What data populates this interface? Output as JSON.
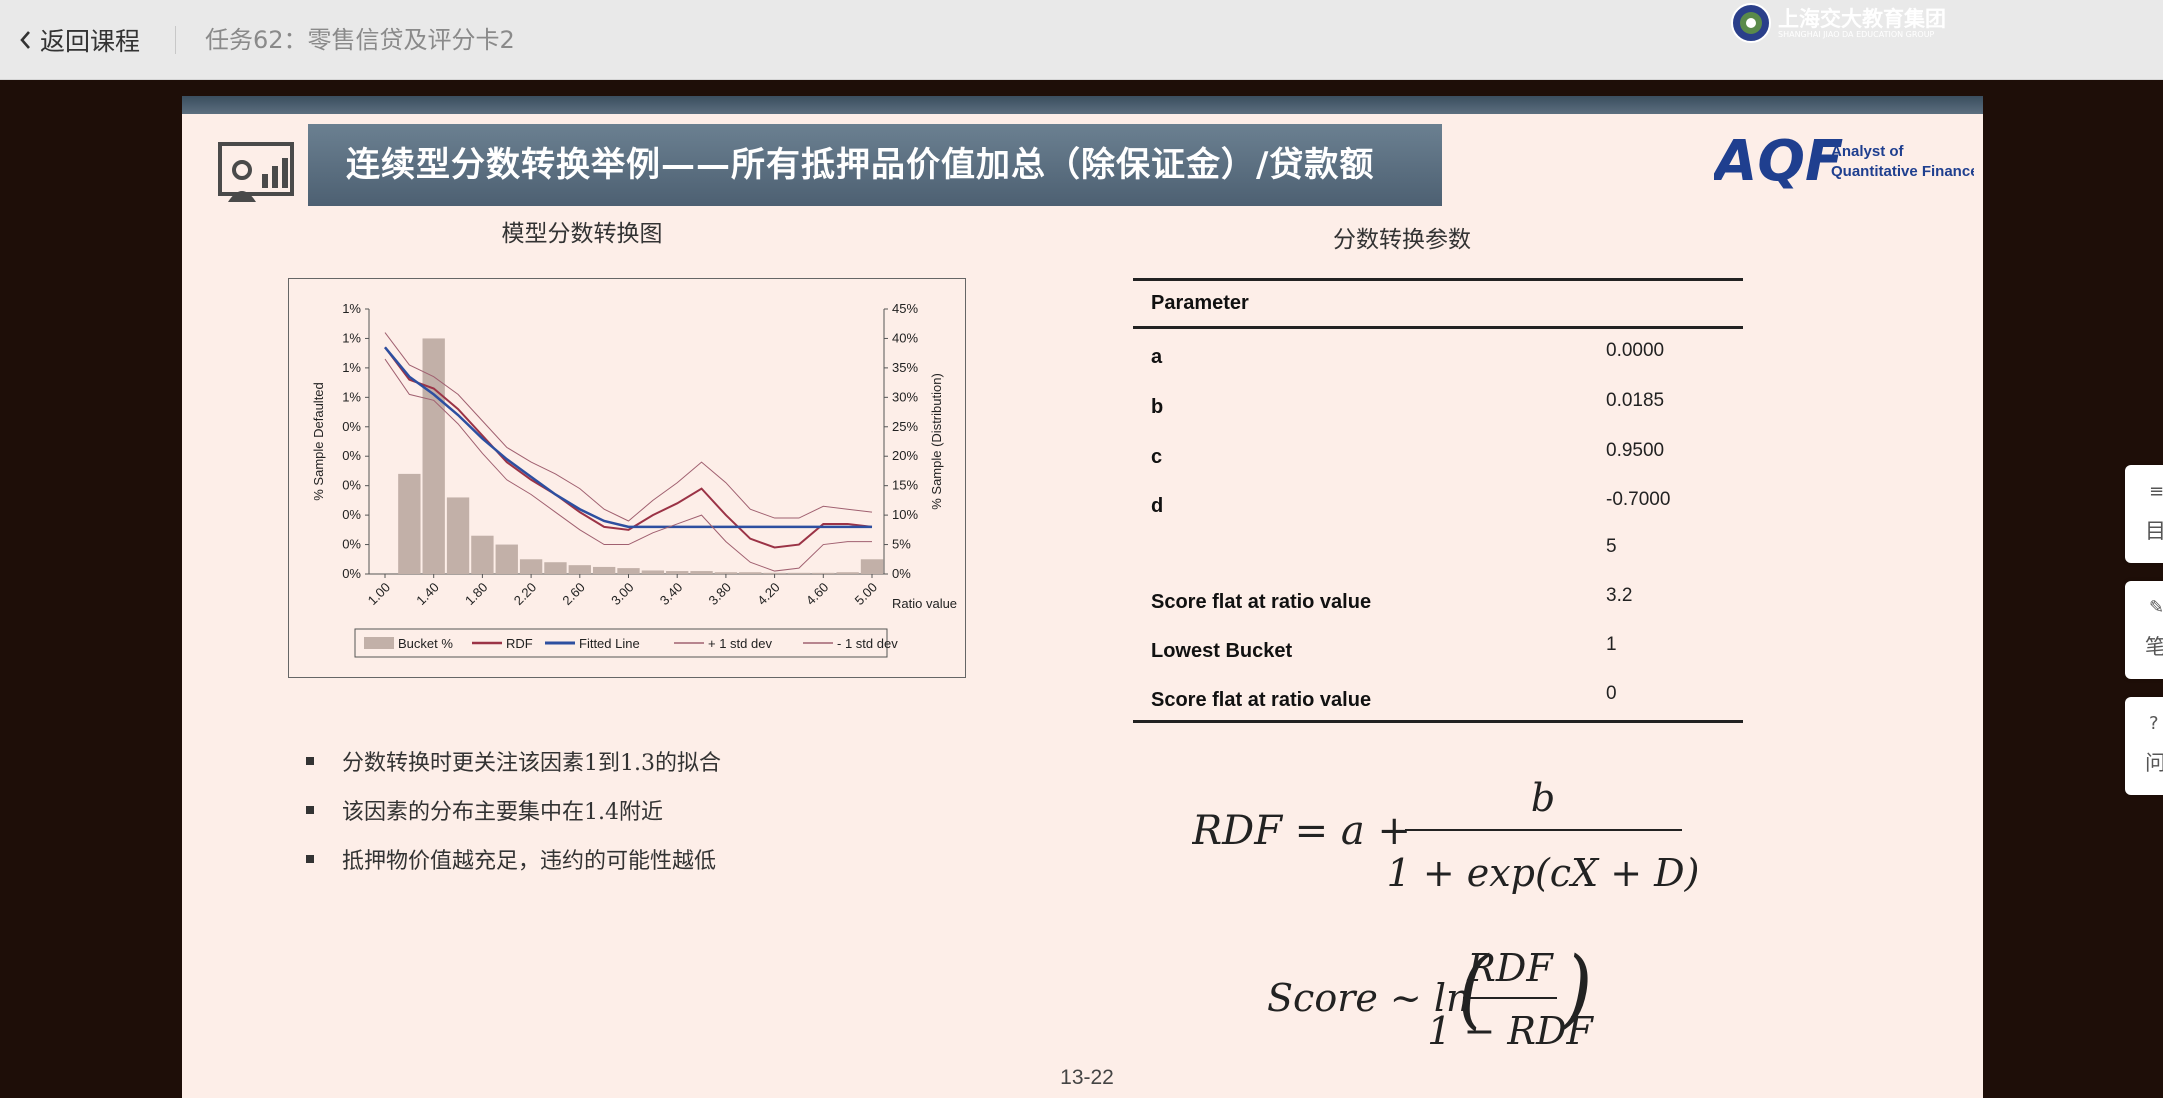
{
  "topbar": {
    "back_label": "返回课程",
    "task_title": "任务62：零售信贷及评分卡2"
  },
  "slide": {
    "title": "连续型分数转换举例——所有抵押品价值加总（除保证金）/贷款额",
    "logo_aqf": {
      "mark": "AQF",
      "line1": "Analyst of",
      "line2": "Quantitative Finance"
    },
    "logo_sjtu": {
      "name": "上海交大教育集团",
      "sub": "SHANGHAI JIAO DA EDUCATION GROUP"
    },
    "chart_title": "模型分数转换图",
    "table_title": "分数转换参数",
    "bullets": [
      "分数转换时更关注该因素1到1.3的拟合",
      "该因素的分布主要集中在1.4附近",
      "抵押物价值越充足，违约的可能性越低"
    ],
    "param_table": {
      "header": "Parameter",
      "rows": [
        {
          "name": "a",
          "value": "0.0000"
        },
        {
          "name": "b",
          "value": "0.0185"
        },
        {
          "name": "c",
          "value": "0.9500"
        },
        {
          "name": "d",
          "value": "-0.7000"
        },
        {
          "name": "",
          "value": "5"
        },
        {
          "name": "Score flat at ratio value",
          "value": "3.2"
        },
        {
          "name": "Lowest Bucket",
          "value": "1"
        },
        {
          "name": "Score flat at ratio value",
          "value": "0"
        }
      ]
    },
    "formula1": {
      "lhs": "RDF = a +",
      "numerator": "b",
      "denominator": "1 + exp(cX + D)"
    },
    "formula2": {
      "lhs": "Score ~ ln",
      "numerator": "RDF",
      "denominator": "1 − RDF"
    },
    "page_number": "13-22"
  },
  "side_tabs": [
    {
      "glyph": "≡",
      "label": "目"
    },
    {
      "glyph": "✎",
      "label": "笔"
    },
    {
      "glyph": "?",
      "label": "问"
    }
  ],
  "colors": {
    "bars": "#c2b0a8",
    "rdf": "#9b3346",
    "fitted": "#2d4fa0",
    "std": "#a06070",
    "banner": "#5a6d7e"
  },
  "chart_data": {
    "type": "bar",
    "title": "",
    "xlabel": "Ratio value",
    "ylabel_left": "% Sample Defaulted",
    "ylabel_right": "% Sample (Distribution)",
    "x_ticks": [
      "1.00",
      "1.40",
      "1.80",
      "2.20",
      "2.60",
      "3.00",
      "3.40",
      "3.80",
      "4.20",
      "4.60",
      "5.00"
    ],
    "y_left_ticks": [
      "0%",
      "0%",
      "0%",
      "0%",
      "0%",
      "0%",
      "1%",
      "1%",
      "1%",
      "1%"
    ],
    "y_right_ticks": [
      "0%",
      "5%",
      "10%",
      "15%",
      "20%",
      "25%",
      "30%",
      "35%",
      "40%",
      "45%"
    ],
    "right_ylim": [
      0,
      45
    ],
    "legend": [
      "Bucket %",
      "RDF",
      "Fitted Line",
      "+ 1 std dev",
      "- 1 std dev"
    ],
    "x": [
      1.0,
      1.2,
      1.4,
      1.6,
      1.8,
      2.0,
      2.2,
      2.4,
      2.6,
      2.8,
      3.0,
      3.2,
      3.4,
      3.6,
      3.8,
      4.0,
      4.2,
      4.4,
      4.6,
      4.8,
      5.0
    ],
    "series": [
      {
        "name": "Bucket %",
        "values": [
          0,
          17,
          40,
          13,
          6.5,
          5,
          2.5,
          2,
          1.5,
          1.2,
          1,
          0.6,
          0.5,
          0.5,
          0.3,
          0.3,
          0.2,
          0.2,
          0.2,
          0.3,
          2.5
        ]
      },
      {
        "name": "RDF",
        "values": [
          38.5,
          33,
          31.5,
          28,
          23.5,
          19,
          16,
          13.5,
          10.5,
          8,
          7.5,
          10,
          12,
          14.5,
          10,
          6,
          4.5,
          5,
          8.5,
          8.5,
          8
        ]
      },
      {
        "name": "Fitted Line",
        "values": [
          38.5,
          33.5,
          30.5,
          27,
          23,
          19.5,
          16.5,
          13.5,
          11,
          9,
          8,
          8,
          8,
          8,
          8,
          8,
          8,
          8,
          8,
          8,
          8
        ]
      },
      {
        "name": "+ 1 std dev",
        "values": [
          41,
          35.5,
          33.5,
          30.5,
          26,
          21.5,
          19,
          17,
          14.5,
          11,
          9,
          12.5,
          15.5,
          19,
          15.5,
          11,
          9.5,
          9.5,
          11.5,
          11,
          10.5
        ]
      },
      {
        "name": "- 1 std dev",
        "values": [
          36.5,
          30.5,
          29.5,
          25.5,
          20.5,
          16,
          13.5,
          10.5,
          7.5,
          5,
          5,
          7,
          8.5,
          10,
          5.5,
          2,
          0.5,
          1,
          5,
          5.5,
          5.5
        ]
      }
    ]
  }
}
